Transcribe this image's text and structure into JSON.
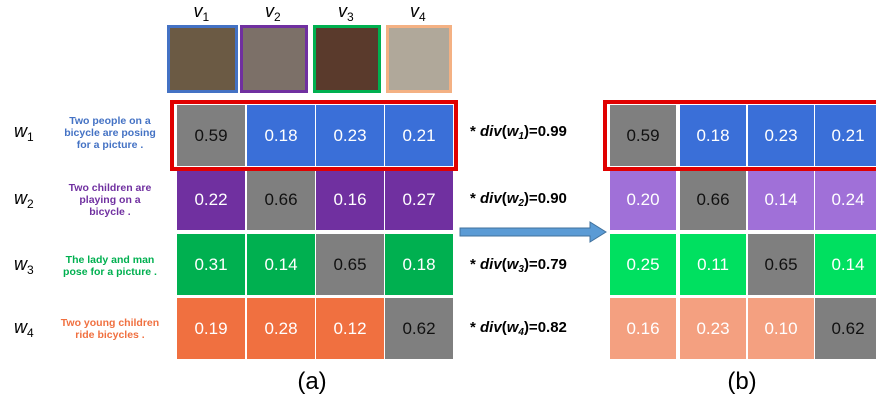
{
  "images": [
    {
      "symbol": "v",
      "index": "1",
      "border": "#4472c4",
      "fill": "#6b5a44"
    },
    {
      "symbol": "v",
      "index": "2",
      "border": "#7030a0",
      "fill": "#7c7068"
    },
    {
      "symbol": "v",
      "index": "3",
      "border": "#00b050",
      "fill": "#5a3a2c"
    },
    {
      "symbol": "v",
      "index": "4",
      "border": "#f4b183",
      "fill": "#b0a89a"
    }
  ],
  "rows": [
    {
      "symbol": "w",
      "index": "1",
      "caption_color": "#4472c4",
      "caption_lines": [
        "Two people on a",
        "bicycle are posing",
        "for a picture ."
      ],
      "color_a": "#3a6fd8",
      "color_b": "#3a6fd8",
      "values_a": [
        "0.59",
        "0.18",
        "0.23",
        "0.21"
      ],
      "values_b": [
        "0.59",
        "0.18",
        "0.23",
        "0.21"
      ],
      "div": {
        "prefix": "* ",
        "func": "div",
        "open": "(",
        "arg": "w",
        "index": "1",
        "close": ")=",
        "value": "0.99"
      }
    },
    {
      "symbol": "w",
      "index": "2",
      "caption_color": "#7030a0",
      "caption_lines": [
        "Two children are",
        "playing on a",
        "bicycle ."
      ],
      "color_a": "#7030a0",
      "color_b": "#a070d8",
      "values_a": [
        "0.22",
        "0.66",
        "0.16",
        "0.27"
      ],
      "values_b": [
        "0.20",
        "0.66",
        "0.14",
        "0.24"
      ],
      "div": {
        "prefix": "* ",
        "func": "div",
        "open": "(",
        "arg": "w",
        "index": "2",
        "close": ")=",
        "value": "0.90"
      }
    },
    {
      "symbol": "w",
      "index": "3",
      "caption_color": "#00b050",
      "caption_lines": [
        "The lady and man",
        "pose for a picture ."
      ],
      "color_a": "#00b050",
      "color_b": "#00e060",
      "values_a": [
        "0.31",
        "0.14",
        "0.65",
        "0.18"
      ],
      "values_b": [
        "0.25",
        "0.11",
        "0.65",
        "0.14"
      ],
      "div": {
        "prefix": "* ",
        "func": "div",
        "open": "(",
        "arg": "w",
        "index": "3",
        "close": ")=",
        "value": "0.79"
      }
    },
    {
      "symbol": "w",
      "index": "4",
      "caption_color": "#f07040",
      "caption_lines": [
        "Two young children",
        "ride bicycles ."
      ],
      "color_a": "#f07040",
      "color_b": "#f4a080",
      "values_a": [
        "0.19",
        "0.28",
        "0.12",
        "0.62"
      ],
      "values_b": [
        "0.16",
        "0.23",
        "0.10",
        "0.62"
      ],
      "div": {
        "prefix": "* ",
        "func": "div",
        "open": "(",
        "arg": "w",
        "index": "4",
        "close": ")=",
        "value": "0.82"
      }
    }
  ],
  "diagonal_color": "#7f7f7f",
  "panel_labels": [
    "(a)",
    "(b)"
  ]
}
